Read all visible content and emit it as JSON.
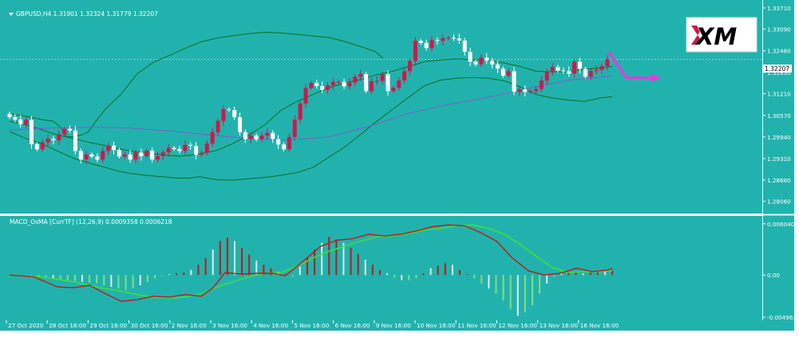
{
  "symbol_header": "GBPUSD,H4  1.31901 1.32324 1.31779 1.32207",
  "indicator_header": "MACD_OsMA [CurrTF] (12,26,9) 0.0009358 0.0006218",
  "logo_text": "XM",
  "current_price_label": "1.32207",
  "colors": {
    "background": "#22b2ad",
    "bullish_candle": "#d2164b",
    "bearish_candle": "#ffffff",
    "bollinger": "#0d6e22",
    "moving_average": "#7d5bd0",
    "macd_line": "#c01818",
    "signal_line": "#3ce03c",
    "histogram_positive": "#c01818",
    "histogram_negative": "#7fe07f",
    "histogram_light": "#e8e8e8",
    "forecast_arrow": "#ee34e0"
  },
  "chart_data": [
    {
      "type": "candlestick",
      "symbol": "GBPUSD",
      "timeframe": "H4",
      "ylim": [
        1.2775,
        1.3385
      ],
      "y_ticks": [
        "1.33710",
        "1.33090",
        "1.32460",
        "1.31830",
        "1.31210",
        "1.30570",
        "1.29940",
        "1.29310",
        "1.28680",
        "1.28060"
      ],
      "x_ticks": [
        "27 Oct 2020",
        "28 Oct 16:00",
        "29 Oct 16:00",
        "30 Oct 16:00",
        "2 Nov 16:00",
        "3 Nov 16:00",
        "4 Nov 16:00",
        "5 Nov 16:00",
        "6 Nov 16:00",
        "9 Nov 16:00",
        "10 Nov 16:00",
        "11 Nov 16:00",
        "12 Nov 16:00",
        "13 Nov 16:00",
        "16 Nov 16:00"
      ],
      "closes": [
        1.3052,
        1.3045,
        1.3031,
        1.3044,
        1.2973,
        1.2958,
        1.2978,
        1.2989,
        1.2984,
        1.3002,
        1.3018,
        1.3013,
        1.2953,
        1.2928,
        1.2943,
        1.2937,
        1.2928,
        1.2953,
        1.2969,
        1.2956,
        1.2937,
        1.2943,
        1.2928,
        1.2949,
        1.2938,
        1.2954,
        1.2928,
        1.2938,
        1.2949,
        1.2962,
        1.2959,
        1.2953,
        1.2971,
        1.2968,
        1.2942,
        1.2948,
        1.2975,
        1.3008,
        1.3041,
        1.3075,
        1.3073,
        1.3052,
        1.3008,
        1.2988,
        1.2998,
        1.2987,
        1.2998,
        1.3006,
        1.2988,
        1.2972,
        1.2958,
        1.2994,
        1.3045,
        1.3092,
        1.3137,
        1.3152,
        1.3143,
        1.3132,
        1.3145,
        1.3155,
        1.3155,
        1.3142,
        1.3153,
        1.317,
        1.3178,
        1.3128,
        1.3157,
        1.3158,
        1.3177,
        1.3128,
        1.3138,
        1.3159,
        1.3186,
        1.3216,
        1.3275,
        1.3269,
        1.3254,
        1.3277,
        1.3275,
        1.3283,
        1.3284,
        1.3282,
        1.3276,
        1.3243,
        1.3214,
        1.3206,
        1.3226,
        1.3217,
        1.3206,
        1.3194,
        1.3173,
        1.3186,
        1.3126,
        1.3133,
        1.3126,
        1.3128,
        1.3134,
        1.3159,
        1.3186,
        1.3199,
        1.3188,
        1.3187,
        1.3179,
        1.3214,
        1.3193,
        1.317,
        1.3187,
        1.319,
        1.3201,
        1.3221
      ],
      "open": 1.3062,
      "bollinger_upper": [
        [
          0,
          1.3062
        ],
        [
          20,
          1.3055
        ],
        [
          40,
          1.3045
        ],
        [
          55,
          1.304
        ],
        [
          65,
          1.302
        ],
        [
          72,
          1.2994
        ],
        [
          80,
          1.2995
        ],
        [
          90,
          1.3
        ],
        [
          98,
          1.3008
        ],
        [
          108,
          1.304
        ],
        [
          120,
          1.3075
        ],
        [
          140,
          1.312
        ],
        [
          160,
          1.3179
        ],
        [
          180,
          1.3212
        ],
        [
          200,
          1.3232
        ],
        [
          220,
          1.3253
        ],
        [
          240,
          1.3272
        ],
        [
          260,
          1.3283
        ],
        [
          280,
          1.329
        ],
        [
          300,
          1.3296
        ],
        [
          320,
          1.33
        ],
        [
          340,
          1.3298
        ],
        [
          360,
          1.3294
        ],
        [
          380,
          1.3289
        ],
        [
          400,
          1.3285
        ],
        [
          420,
          1.3273
        ],
        [
          440,
          1.3258
        ],
        [
          458,
          1.3244
        ],
        [
          468,
          1.3224
        ]
      ],
      "bollinger_middle": [
        [
          0,
          1.304
        ],
        [
          20,
          1.303
        ],
        [
          40,
          1.3015
        ],
        [
          60,
          1.3
        ],
        [
          80,
          1.299
        ],
        [
          100,
          1.2978
        ],
        [
          120,
          1.2969
        ],
        [
          140,
          1.2958
        ],
        [
          160,
          1.295
        ],
        [
          180,
          1.2945
        ],
        [
          200,
          1.294
        ],
        [
          215,
          1.2938
        ],
        [
          235,
          1.2943
        ],
        [
          260,
          1.2955
        ],
        [
          280,
          1.2975
        ],
        [
          300,
          1.3
        ],
        [
          320,
          1.303
        ],
        [
          340,
          1.3072
        ],
        [
          360,
          1.3098
        ],
        [
          380,
          1.3118
        ],
        [
          400,
          1.3138
        ],
        [
          420,
          1.3152
        ],
        [
          440,
          1.3162
        ],
        [
          460,
          1.3176
        ],
        [
          480,
          1.3186
        ],
        [
          500,
          1.32
        ],
        [
          520,
          1.3214
        ],
        [
          540,
          1.3219
        ],
        [
          560,
          1.3222
        ],
        [
          580,
          1.322
        ],
        [
          600,
          1.3218
        ],
        [
          620,
          1.321
        ],
        [
          640,
          1.32
        ],
        [
          660,
          1.3186
        ],
        [
          680,
          1.3184
        ],
        [
          700,
          1.3185
        ],
        [
          720,
          1.3192
        ],
        [
          740,
          1.3196
        ],
        [
          755,
          1.32
        ]
      ],
      "bollinger_lower": [
        [
          0,
          1.301
        ],
        [
          20,
          1.299
        ],
        [
          40,
          1.2975
        ],
        [
          60,
          1.2953
        ],
        [
          80,
          1.2932
        ],
        [
          100,
          1.2918
        ],
        [
          120,
          1.2905
        ],
        [
          135,
          1.2895
        ],
        [
          150,
          1.2888
        ],
        [
          170,
          1.2882
        ],
        [
          190,
          1.2878
        ],
        [
          210,
          1.2874
        ],
        [
          225,
          1.2874
        ],
        [
          238,
          1.2878
        ],
        [
          260,
          1.2869
        ],
        [
          280,
          1.2868
        ],
        [
          300,
          1.2872
        ],
        [
          320,
          1.2876
        ],
        [
          340,
          1.2882
        ],
        [
          360,
          1.289
        ],
        [
          380,
          1.2905
        ],
        [
          400,
          1.2935
        ],
        [
          420,
          1.2965
        ],
        [
          440,
          1.3002
        ],
        [
          460,
          1.304
        ],
        [
          480,
          1.3075
        ],
        [
          500,
          1.311
        ],
        [
          520,
          1.3144
        ],
        [
          540,
          1.316
        ],
        [
          560,
          1.3166
        ],
        [
          580,
          1.3168
        ],
        [
          600,
          1.3166
        ],
        [
          620,
          1.3158
        ],
        [
          640,
          1.314
        ],
        [
          660,
          1.3118
        ],
        [
          680,
          1.3108
        ],
        [
          700,
          1.3102
        ],
        [
          720,
          1.3098
        ],
        [
          740,
          1.3108
        ],
        [
          755,
          1.3112
        ]
      ],
      "moving_average": [
        [
          0,
          1.3014
        ],
        [
          50,
          1.302
        ],
        [
          100,
          1.3023
        ],
        [
          150,
          1.302
        ],
        [
          200,
          1.3012
        ],
        [
          250,
          1.3
        ],
        [
          300,
          1.299
        ],
        [
          350,
          1.2985
        ],
        [
          400,
          1.2994
        ],
        [
          450,
          1.3025
        ],
        [
          500,
          1.3063
        ],
        [
          550,
          1.3089
        ],
        [
          600,
          1.311
        ],
        [
          650,
          1.3136
        ],
        [
          700,
          1.316
        ],
        [
          755,
          1.3172
        ]
      ],
      "forecast": {
        "from": 1.3242,
        "pivot": 1.3167,
        "to": 1.3167,
        "note": "forecast arrow drawn down-then-sideways"
      }
    },
    {
      "type": "bar+line",
      "name": "MACD_OsMA [CurrTF] (12,26,9)",
      "ylim": [
        -0.00496,
        0.0064
      ],
      "y_ticks": [
        "0.006040",
        "0.00",
        "-0.004963"
      ],
      "histogram": [
        0,
        0,
        0,
        -0.0001,
        -0.0002,
        -0.0003,
        -0.0004,
        -0.0005,
        -0.0006,
        -0.0007,
        -0.0008,
        -0.0009,
        -0.001,
        -0.0012,
        -0.0014,
        -0.0016,
        -0.0018,
        -0.0016,
        -0.0012,
        -0.0008,
        -0.0004,
        -0.0001,
        0.0001,
        0.0002,
        0.0003,
        0.0006,
        0.0012,
        0.002,
        0.003,
        0.004,
        0.0044,
        0.004,
        0.0032,
        0.0024,
        0.0017,
        0.0012,
        0.0008,
        0.0004,
        0.0001,
        -0.0002,
        0.001,
        0.002,
        0.003,
        0.0038,
        0.0045,
        0.0042,
        0.0038,
        0.0032,
        0.0025,
        0.0018,
        0.0012,
        0.0006,
        0.0002,
        -0.0003,
        -0.0006,
        -0.0006,
        -0.0004,
        0.0002,
        0.0008,
        0.0011,
        0.0014,
        0.0012,
        0.0006,
        0.0001,
        -0.0004,
        -0.001,
        -0.0016,
        -0.0022,
        -0.003,
        -0.004,
        -0.0048,
        -0.0044,
        -0.0036,
        -0.0022,
        -0.001,
        -0.0002,
        0.0003,
        0.0004,
        0.0003,
        0.0002,
        0.0003,
        0.0004,
        0.0005,
        0.0006
      ],
      "macd_line": [
        [
          0,
          0.0
        ],
        [
          30,
          -0.0002
        ],
        [
          60,
          -0.0014
        ],
        [
          80,
          -0.0015
        ],
        [
          100,
          -0.0012
        ],
        [
          120,
          -0.0022
        ],
        [
          140,
          -0.0031
        ],
        [
          160,
          -0.0029
        ],
        [
          180,
          -0.0025
        ],
        [
          200,
          -0.0026
        ],
        [
          220,
          -0.0023
        ],
        [
          240,
          -0.0025
        ],
        [
          255,
          -0.0015
        ],
        [
          270,
          0.0003
        ],
        [
          290,
          0.0001
        ],
        [
          310,
          0.0002
        ],
        [
          330,
          0.0002
        ],
        [
          345,
          -0.0001
        ],
        [
          360,
          0.001
        ],
        [
          375,
          0.0022
        ],
        [
          390,
          0.0034
        ],
        [
          410,
          0.0041
        ],
        [
          430,
          0.0043
        ],
        [
          450,
          0.0048
        ],
        [
          470,
          0.0046
        ],
        [
          490,
          0.0048
        ],
        [
          510,
          0.0052
        ],
        [
          530,
          0.0057
        ],
        [
          550,
          0.0059
        ],
        [
          570,
          0.0058
        ],
        [
          590,
          0.005
        ],
        [
          610,
          0.004
        ],
        [
          630,
          0.002
        ],
        [
          650,
          0.0005
        ],
        [
          670,
          0.0
        ],
        [
          690,
          0.0002
        ],
        [
          710,
          0.0008
        ],
        [
          730,
          0.0004
        ],
        [
          750,
          0.0006
        ],
        [
          755,
          0.0008
        ]
      ],
      "signal_line": [
        [
          0,
          0.0
        ],
        [
          40,
          -0.0002
        ],
        [
          80,
          -0.0008
        ],
        [
          100,
          -0.0012
        ],
        [
          120,
          -0.0016
        ],
        [
          140,
          -0.0019
        ],
        [
          160,
          -0.0023
        ],
        [
          180,
          -0.0026
        ],
        [
          200,
          -0.0027
        ],
        [
          220,
          -0.0026
        ],
        [
          240,
          -0.0022
        ],
        [
          260,
          -0.0014
        ],
        [
          280,
          -0.0008
        ],
        [
          300,
          -0.0002
        ],
        [
          320,
          0.0002
        ],
        [
          340,
          0.0003
        ],
        [
          360,
          0.001
        ],
        [
          380,
          0.002
        ],
        [
          400,
          0.0028
        ],
        [
          420,
          0.0034
        ],
        [
          440,
          0.004
        ],
        [
          460,
          0.0045
        ],
        [
          480,
          0.0046
        ],
        [
          500,
          0.0049
        ],
        [
          520,
          0.0053
        ],
        [
          540,
          0.0055
        ],
        [
          560,
          0.0058
        ],
        [
          580,
          0.0059
        ],
        [
          600,
          0.0055
        ],
        [
          620,
          0.0048
        ],
        [
          640,
          0.0036
        ],
        [
          660,
          0.0022
        ],
        [
          680,
          0.0009
        ],
        [
          700,
          0.0003
        ],
        [
          720,
          0.0004
        ],
        [
          740,
          0.0004
        ],
        [
          755,
          0.0005
        ]
      ]
    }
  ]
}
